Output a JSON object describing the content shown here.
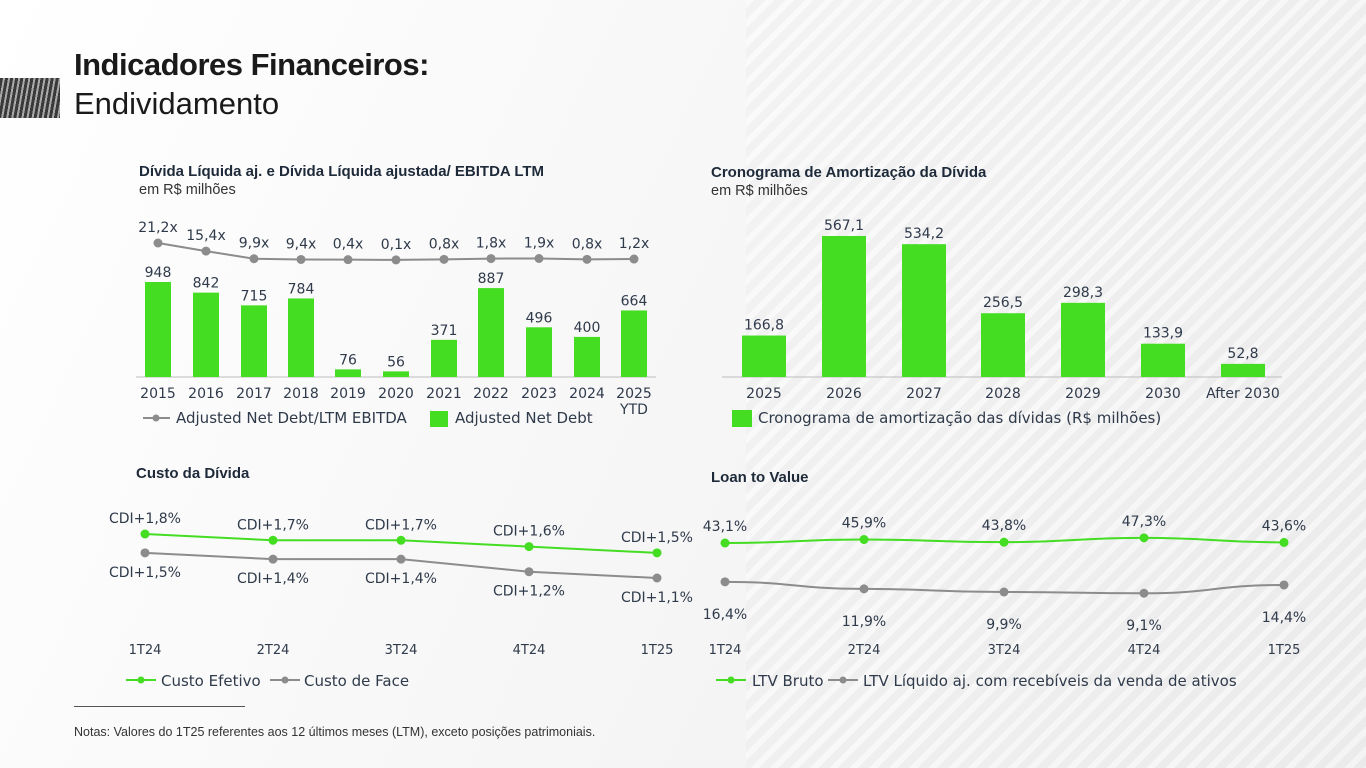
{
  "page": {
    "title_bold": "Indicadores Financeiros:",
    "title_light": "Endividamento",
    "note": "Notas: Valores do 1T25 referentes aos 12 últimos meses (LTM), exceto posições patrimoniais."
  },
  "colors": {
    "green": "#44dd22",
    "gray": "#8c8c8c",
    "text": "#2f3a4a"
  },
  "chart_data": [
    {
      "id": "net-debt",
      "type": "bar+line",
      "title": "Dívida Líquida aj. e Dívida Líquida ajustada/ EBITDA LTM",
      "subtitle": "em R$ milhões",
      "categories": [
        "2015",
        "2016",
        "2017",
        "2018",
        "2019",
        "2020",
        "2021",
        "2022",
        "2023",
        "2024",
        "2025"
      ],
      "category_suffix": "YTD",
      "bar_series": {
        "name": "Adjusted Net Debt",
        "values": [
          948,
          842,
          715,
          784,
          76,
          56,
          371,
          887,
          496,
          400,
          664
        ]
      },
      "line_series": {
        "name": "Adjusted Net Debt/LTM EBITDA",
        "values": [
          21.2,
          15.4,
          9.9,
          9.4,
          0.4,
          0.1,
          0.8,
          1.8,
          1.9,
          0.8,
          1.2
        ],
        "labels": [
          "21,2x",
          "15,4x",
          "9,9x",
          "9,4x",
          "0,4x",
          "0,1x",
          "0,8x",
          "1,8x",
          "1,9x",
          "0,8x",
          "1,2x"
        ]
      }
    },
    {
      "id": "amortization",
      "type": "bar",
      "title": "Cronograma de Amortização da Dívida",
      "subtitle": "em R$ milhões",
      "categories": [
        "2025",
        "2026",
        "2027",
        "2028",
        "2029",
        "2030",
        "After 2030"
      ],
      "values": [
        166.8,
        567.1,
        534.2,
        256.5,
        298.3,
        133.9,
        52.8
      ],
      "labels": [
        "166,8",
        "567,1",
        "534,2",
        "256,5",
        "298,3",
        "133,9",
        "52,8"
      ],
      "legend": "Cronograma de amortização das dívidas (R$ milhões)"
    },
    {
      "id": "cost",
      "type": "line",
      "title": "Custo da Dívida",
      "categories": [
        "1T24",
        "2T24",
        "3T24",
        "4T24",
        "1T25"
      ],
      "series": [
        {
          "name": "Custo Efetivo",
          "values": [
            1.8,
            1.7,
            1.7,
            1.6,
            1.5
          ],
          "labels": [
            "CDI+1,8%",
            "CDI+1,7%",
            "CDI+1,7%",
            "CDI+1,6%",
            "CDI+1,5%"
          ]
        },
        {
          "name": "Custo de Face",
          "values": [
            1.5,
            1.4,
            1.4,
            1.2,
            1.1
          ],
          "labels": [
            "CDI+1,5%",
            "CDI+1,4%",
            "CDI+1,4%",
            "CDI+1,2%",
            "CDI+1,1%"
          ]
        }
      ]
    },
    {
      "id": "ltv",
      "type": "line",
      "title": "Loan to Value",
      "categories": [
        "1T24",
        "2T24",
        "3T24",
        "4T24",
        "1T25"
      ],
      "series": [
        {
          "name": "LTV Bruto",
          "values": [
            43.1,
            45.9,
            43.8,
            47.3,
            43.6
          ],
          "labels": [
            "43,1%",
            "45,9%",
            "43,8%",
            "47,3%",
            "43,6%"
          ]
        },
        {
          "name": "LTV Líquido aj. com recebíveis da venda de ativos",
          "values": [
            16.4,
            11.9,
            9.9,
            9.1,
            14.4
          ],
          "labels": [
            "16,4%",
            "11,9%",
            "9,9%",
            "9,1%",
            "14,4%"
          ]
        }
      ]
    }
  ]
}
